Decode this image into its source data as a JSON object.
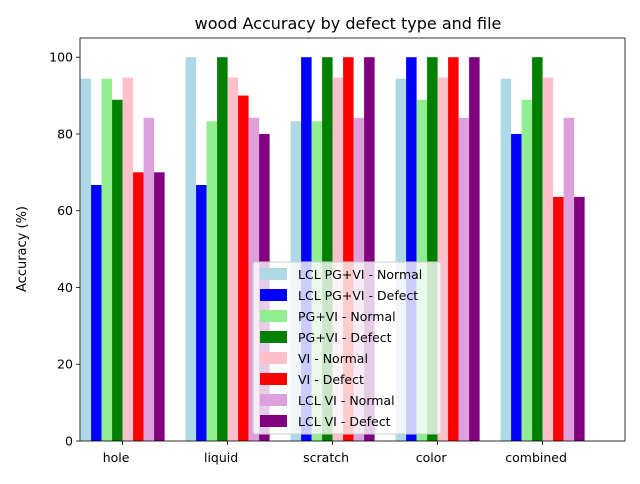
{
  "chart_data": {
    "type": "bar",
    "title": "wood Accuracy by defect type and file",
    "xlabel": "",
    "ylabel": "Accuracy (%)",
    "ylim": [
      0,
      105
    ],
    "yticks": [
      0,
      20,
      40,
      60,
      80,
      100
    ],
    "grid": false,
    "legend_position": "lower center",
    "categories": [
      "hole",
      "liquid",
      "scratch",
      "color",
      "combined"
    ],
    "series": [
      {
        "name": "LCL PG+VI - Normal",
        "color": "#add8e6",
        "values": [
          94.4,
          100,
          83.3,
          94.4,
          94.4
        ]
      },
      {
        "name": "LCL PG+VI - Defect",
        "color": "#0000ff",
        "values": [
          66.7,
          66.7,
          100,
          100,
          80.0
        ]
      },
      {
        "name": "PG+VI - Normal",
        "color": "#90ee90",
        "values": [
          94.4,
          83.3,
          83.3,
          88.9,
          88.9
        ]
      },
      {
        "name": "PG+VI - Defect",
        "color": "#008000",
        "values": [
          88.9,
          100,
          100,
          100,
          100
        ]
      },
      {
        "name": "VI - Normal",
        "color": "#ffc0cb",
        "values": [
          94.7,
          94.7,
          94.7,
          94.7,
          94.7
        ]
      },
      {
        "name": "VI - Defect",
        "color": "#ff0000",
        "values": [
          70.0,
          90.0,
          100,
          100,
          63.6
        ]
      },
      {
        "name": "LCL VI - Normal",
        "color": "#dda0dd",
        "values": [
          84.2,
          84.2,
          84.2,
          84.2,
          84.2
        ]
      },
      {
        "name": "LCL VI - Defect",
        "color": "#800080",
        "values": [
          70.0,
          80.0,
          100,
          100,
          63.6
        ]
      }
    ]
  }
}
